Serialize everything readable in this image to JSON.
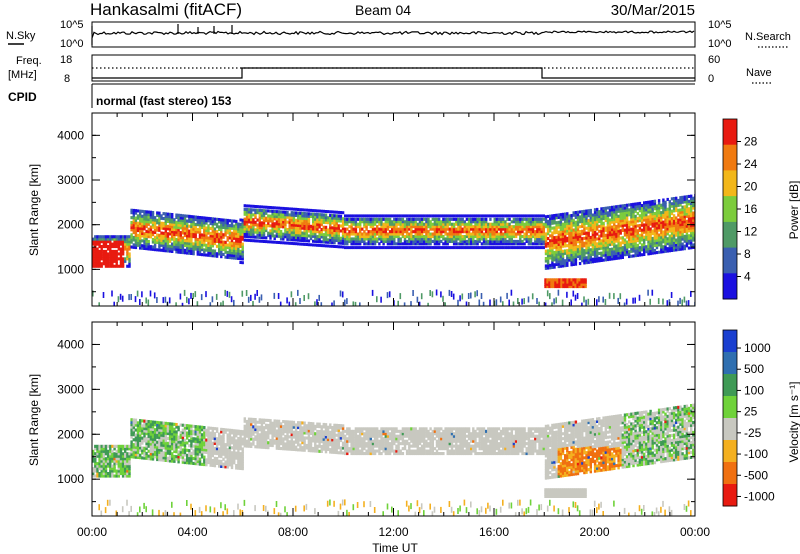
{
  "header": {
    "station": "Hankasalmi (fitACF)",
    "beam": "Beam 04",
    "date": "30/Mar/2015"
  },
  "top_strips": {
    "nsky_label": "N.Sky",
    "nsky_ticks": [
      "10^5",
      "10^0"
    ],
    "nsearch_label": "N.Search",
    "nsearch_ticks": [
      "10^5",
      "10^0"
    ],
    "freq_label_1": "Freq.",
    "freq_label_2": "[MHz]",
    "freq_ticks": [
      "18",
      "8"
    ],
    "nave_label": "Nave",
    "nave_ticks": [
      "60",
      "0"
    ],
    "cpid_label": "CPID",
    "cpid_text": "normal (fast stereo) 153"
  },
  "chart_data": [
    {
      "type": "heatmap",
      "panel": "power",
      "ylabel": "Slant Range [km]",
      "xlabel": "",
      "ylim": [
        180,
        4500
      ],
      "yticks": [
        "1000",
        "2000",
        "3000",
        "4000"
      ],
      "colorbar_label": "Power [dB]",
      "colorbar_ticks": [
        "4",
        "8",
        "12",
        "16",
        "20",
        "24",
        "28"
      ],
      "colorbar_colors": [
        "#1a10e0",
        "#3a5fb0",
        "#4f9a66",
        "#7ccc3c",
        "#f2b71a",
        "#f07a10",
        "#e81a10"
      ],
      "ranges": [
        {
          "t": [
            0,
            1
          ],
          "r": [
            900,
            1600
          ],
          "level": "high"
        },
        {
          "t": [
            1,
            6
          ],
          "r": [
            1300,
            2600
          ],
          "level": "medium"
        },
        {
          "t": [
            6,
            18
          ],
          "r": [
            1200,
            2400
          ],
          "level": "medium"
        },
        {
          "t": [
            18,
            19.5
          ],
          "r": [
            600,
            800
          ],
          "level": "high"
        },
        {
          "t": [
            18,
            24
          ],
          "r": [
            800,
            2800
          ],
          "level": "mixed"
        }
      ]
    },
    {
      "type": "heatmap",
      "panel": "velocity",
      "ylabel": "Slant Range [km]",
      "xlabel": "Time UT",
      "ylim": [
        180,
        4500
      ],
      "yticks": [
        "1000",
        "2000",
        "3000",
        "4000"
      ],
      "xticks": [
        "00:00",
        "04:00",
        "08:00",
        "12:00",
        "16:00",
        "20:00",
        "00:00"
      ],
      "colorbar_label": "Velocity [m s⁻¹]",
      "colorbar_ticks": [
        "1000",
        "500",
        "100",
        "25",
        "-25",
        "-100",
        "-500",
        "-1000"
      ],
      "colorbar_colors": [
        "#1a3fd0",
        "#2f6fb0",
        "#3f9a55",
        "#6fd23a",
        "#c8c8c0",
        "#f4b020",
        "#f07010",
        "#e81a10"
      ]
    }
  ]
}
